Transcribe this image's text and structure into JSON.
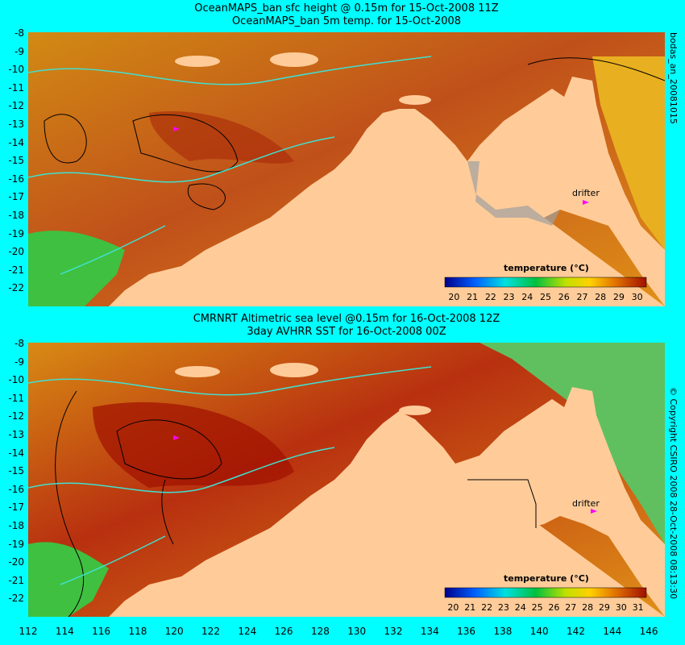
{
  "panel1": {
    "title_line1": "OceanMAPS_ban sfc height @ 0.15m for 15-Oct-2008 11Z",
    "title_line2": "OceanMAPS_ban 5m temp. for 15-Oct-2008",
    "side_label": "bodas_an_20081015",
    "drifter_label": "drifter",
    "colorbar_title": "temperature (°C)",
    "colorbar_ticks": [
      "20",
      "21",
      "22",
      "23",
      "24",
      "25",
      "26",
      "27",
      "28",
      "29",
      "30"
    ],
    "y_ticks": [
      "-8",
      "-9",
      "-10",
      "-11",
      "-12",
      "-13",
      "-14",
      "-15",
      "-16",
      "-17",
      "-18",
      "-19",
      "-20",
      "-21",
      "-22"
    ]
  },
  "panel2": {
    "title_line1": "CMRNRT Altimetric sea level  @0.15m  for 16-Oct-2008 12Z",
    "title_line2": "3day AVHRR SST for 16-Oct-2008 00Z",
    "side_label": "© Copyright CSIRO 2008   28-Oct-2008 08:13:30",
    "drifter_label": "drifter",
    "colorbar_title": "temperature (°C)",
    "colorbar_ticks": [
      "20",
      "21",
      "22",
      "23",
      "24",
      "25",
      "26",
      "27",
      "28",
      "29",
      "30",
      "31"
    ],
    "y_ticks": [
      "-8",
      "-9",
      "-10",
      "-11",
      "-12",
      "-13",
      "-14",
      "-15",
      "-16",
      "-17",
      "-18",
      "-19",
      "-20",
      "-21",
      "-22"
    ]
  },
  "x_ticks": [
    "112",
    "114",
    "116",
    "118",
    "120",
    "122",
    "124",
    "126",
    "128",
    "130",
    "132",
    "134",
    "136",
    "138",
    "140",
    "142",
    "144",
    "146"
  ],
  "colors": {
    "background": "#00ffff",
    "land": "#ffcc99",
    "sea_warm": "#c85a00",
    "sea_hot": "#a01000",
    "contour": "#40e0d0",
    "drifter": "#ff00ff"
  }
}
